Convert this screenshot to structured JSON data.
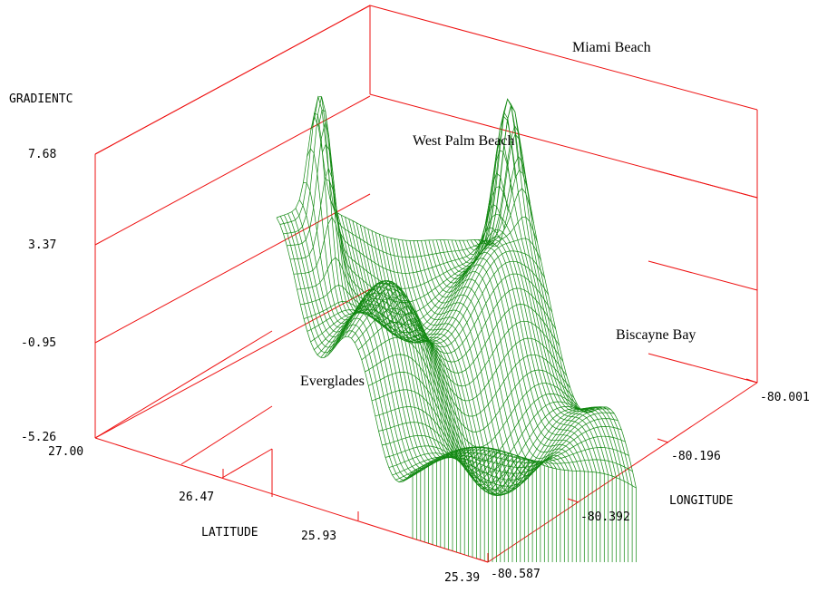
{
  "chart_data": {
    "type": "surface",
    "zlabel": "GRADIENTC",
    "xlabel": "LATITUDE",
    "ylabel": "LONGITUDE",
    "z_ticks": [
      "7.68",
      "3.37",
      "-0.95",
      "-5.26"
    ],
    "lat_ticks": [
      "27.00",
      "26.47",
      "25.93",
      "25.39"
    ],
    "lon_ticks": [
      "-80.587",
      "-80.392",
      "-80.196",
      "-80.001"
    ],
    "zlim": [
      -5.26,
      7.68
    ],
    "latlim": [
      25.39,
      27.0
    ],
    "lonlim": [
      -80.587,
      -80.001
    ],
    "annotations": [
      "Miami Beach",
      "West Palm Beach",
      "Biscayne Bay",
      "Everglades"
    ],
    "colors": {
      "box": "#ee1111",
      "surface": "#118811"
    }
  }
}
